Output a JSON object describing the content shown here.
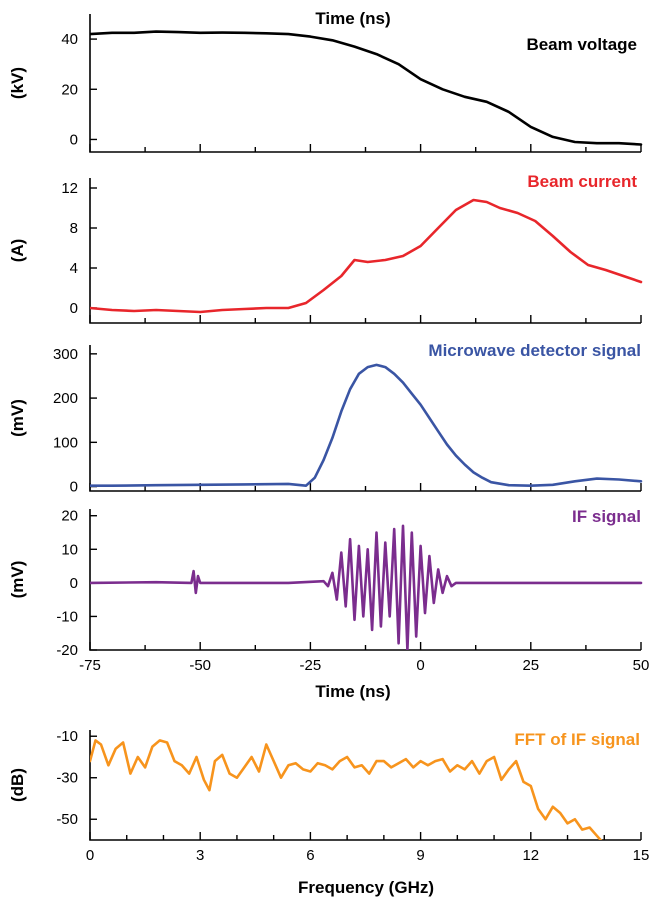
{
  "chart_data": [
    {
      "type": "line",
      "panel_label": "Beam voltage",
      "ylabel": "(kV)",
      "xlabel": "Time (ns)",
      "xlabel_position": "top",
      "xlim": [
        -75,
        50
      ],
      "ylim": [
        -5,
        50
      ],
      "yticks": [
        0,
        20,
        40
      ],
      "ytick_labels": [
        "0",
        "20",
        "40"
      ],
      "color": "#000000",
      "series": [
        {
          "x": [
            -75,
            -70,
            -65,
            -60,
            -55,
            -50,
            -45,
            -40,
            -35,
            -30,
            -25,
            -20,
            -15,
            -10,
            -5,
            0,
            5,
            10,
            15,
            20,
            25,
            30,
            35,
            40,
            45,
            50
          ],
          "y": [
            42,
            42.5,
            42.5,
            43,
            42.8,
            42.5,
            42.6,
            42.5,
            42.3,
            42,
            41,
            39.5,
            37,
            34,
            30,
            24,
            20,
            17,
            15,
            11,
            5,
            1,
            -1,
            -1.5,
            -1.5,
            -2
          ]
        }
      ]
    },
    {
      "type": "line",
      "panel_label": "Beam current",
      "ylabel": "(A)",
      "xlim": [
        -75,
        50
      ],
      "ylim": [
        -1.5,
        13
      ],
      "yticks": [
        0,
        4,
        8,
        12
      ],
      "ytick_labels": [
        "0",
        "4",
        "8",
        "12"
      ],
      "color": "#e8262b",
      "series": [
        {
          "x": [
            -75,
            -70,
            -65,
            -60,
            -55,
            -50,
            -45,
            -40,
            -35,
            -30,
            -26,
            -22,
            -18,
            -15,
            -12,
            -8,
            -4,
            0,
            4,
            8,
            12,
            15,
            18,
            22,
            26,
            30,
            34,
            38,
            42,
            46,
            50
          ],
          "y": [
            0,
            -0.2,
            -0.3,
            -0.2,
            -0.3,
            -0.4,
            -0.2,
            -0.1,
            0,
            0,
            0.5,
            1.8,
            3.2,
            4.8,
            4.6,
            4.8,
            5.2,
            6.2,
            8,
            9.8,
            10.8,
            10.6,
            10,
            9.5,
            8.7,
            7.2,
            5.6,
            4.3,
            3.8,
            3.2,
            2.6
          ]
        }
      ]
    },
    {
      "type": "line",
      "panel_label": "Microwave detector signal",
      "ylabel": "(mV)",
      "xlim": [
        -75,
        50
      ],
      "ylim": [
        -10,
        320
      ],
      "yticks": [
        0,
        100,
        200,
        300
      ],
      "ytick_labels": [
        "0",
        "100",
        "200",
        "300"
      ],
      "color": "#3a55a4",
      "series": [
        {
          "x": [
            -75,
            -70,
            -60,
            -50,
            -40,
            -30,
            -26,
            -24,
            -22,
            -20,
            -18,
            -16,
            -14,
            -12,
            -10,
            -8,
            -6,
            -4,
            -2,
            0,
            2,
            4,
            6,
            8,
            10,
            12,
            14,
            16,
            20,
            25,
            30,
            35,
            40,
            45,
            50
          ],
          "y": [
            2,
            2,
            3,
            4,
            5,
            6,
            2,
            20,
            60,
            110,
            170,
            220,
            255,
            270,
            275,
            270,
            255,
            235,
            210,
            185,
            155,
            125,
            95,
            70,
            50,
            32,
            20,
            10,
            3,
            2,
            4,
            12,
            18,
            16,
            12
          ]
        }
      ]
    },
    {
      "type": "line",
      "panel_label": "IF signal",
      "ylabel": "(mV)",
      "xlabel": "Time (ns)",
      "xlim": [
        -75,
        50
      ],
      "ylim": [
        -20,
        22
      ],
      "yticks": [
        -20,
        -10,
        0,
        10,
        20
      ],
      "ytick_labels": [
        "-20",
        "-10",
        "0",
        "10",
        "20"
      ],
      "xticks": [
        -75,
        -50,
        -25,
        0,
        25,
        50
      ],
      "xtick_labels": [
        "-75",
        "-50",
        "-25",
        "0",
        "25",
        "50"
      ],
      "color": "#7b2d8e",
      "series": [
        {
          "x": [
            -75,
            -60,
            -52,
            -51.5,
            -51,
            -50.5,
            -50,
            -40,
            -30,
            -22,
            -21,
            -20,
            -19,
            -18,
            -17,
            -16,
            -15,
            -14,
            -13,
            -12,
            -11,
            -10,
            -9,
            -8,
            -7,
            -6,
            -5,
            -4,
            -3,
            -2,
            -1,
            0,
            1,
            2,
            3,
            4,
            5,
            6,
            7,
            8,
            10,
            20,
            30,
            40,
            50
          ],
          "y": [
            0,
            0.2,
            0,
            3.5,
            -3,
            2,
            0,
            0,
            0,
            0.5,
            -1,
            3,
            -5,
            9,
            -7,
            13,
            -11,
            11,
            -10,
            10,
            -14,
            15,
            -13,
            12,
            -10,
            16,
            -18,
            17,
            -20,
            15,
            -16,
            11,
            -9,
            8,
            -6,
            4,
            -3,
            2,
            -1,
            0,
            0,
            0,
            0,
            0,
            0
          ]
        }
      ]
    },
    {
      "type": "line",
      "panel_label": "FFT of IF signal",
      "ylabel": "(dB)",
      "xlabel": "Frequency (GHz)",
      "xlim": [
        0,
        15
      ],
      "ylim": [
        -60,
        -7
      ],
      "yticks": [
        -50,
        -30,
        -10
      ],
      "ytick_labels": [
        "-50",
        "-30",
        "-10"
      ],
      "xticks": [
        0,
        3,
        6,
        9,
        12,
        15
      ],
      "xtick_labels": [
        "0",
        "3",
        "6",
        "9",
        "12",
        "15"
      ],
      "color": "#f7941d",
      "series": [
        {
          "x": [
            0,
            0.15,
            0.3,
            0.5,
            0.7,
            0.9,
            1.1,
            1.3,
            1.5,
            1.7,
            1.9,
            2.1,
            2.3,
            2.5,
            2.7,
            2.9,
            3.1,
            3.25,
            3.4,
            3.6,
            3.8,
            4.0,
            4.2,
            4.4,
            4.6,
            4.8,
            5.0,
            5.2,
            5.4,
            5.6,
            5.8,
            6.0,
            6.2,
            6.4,
            6.6,
            6.8,
            7.0,
            7.2,
            7.4,
            7.6,
            7.8,
            8.0,
            8.2,
            8.4,
            8.6,
            8.8,
            9.0,
            9.2,
            9.4,
            9.6,
            9.8,
            10.0,
            10.2,
            10.4,
            10.6,
            10.8,
            11.0,
            11.2,
            11.4,
            11.6,
            11.8,
            12.0,
            12.2,
            12.4,
            12.6,
            12.8,
            13.0,
            13.2,
            13.4,
            13.6,
            13.8,
            14.0,
            14.1
          ],
          "y": [
            -22,
            -12,
            -14,
            -24,
            -16,
            -13,
            -28,
            -20,
            -25,
            -15,
            -12,
            -13,
            -22,
            -24,
            -28,
            -20,
            -31,
            -36,
            -22,
            -19,
            -28,
            -30,
            -25,
            -20,
            -27,
            -14,
            -22,
            -30,
            -24,
            -23,
            -26,
            -27,
            -23,
            -24,
            -26,
            -22,
            -20,
            -25,
            -24,
            -28,
            -22,
            -22,
            -25,
            -23,
            -21,
            -25,
            -22,
            -24,
            -22,
            -21,
            -27,
            -24,
            -26,
            -22,
            -28,
            -22,
            -20,
            -31,
            -26,
            -22,
            -32,
            -34,
            -45,
            -50,
            -44,
            -47,
            -52,
            -50,
            -55,
            -54,
            -58,
            -62,
            -62
          ]
        }
      ]
    }
  ]
}
